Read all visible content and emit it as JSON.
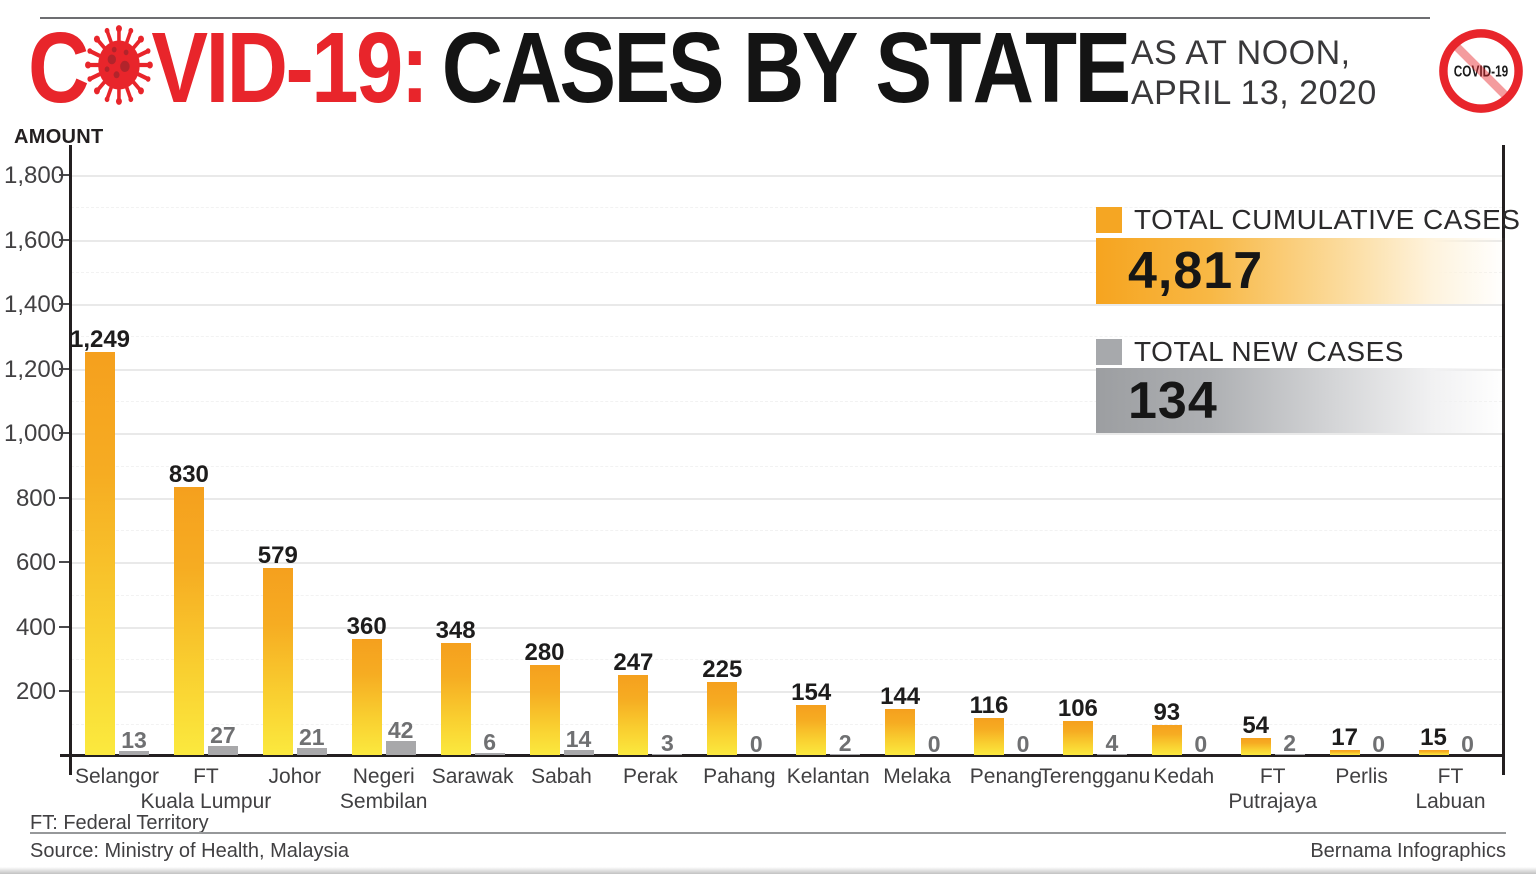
{
  "header": {
    "title_c": "C",
    "title_red_rest": "VID-19:",
    "title_black": "CASES BY STATE",
    "date_line1": "AS AT NOON,",
    "date_line2": "APRIL 13, 2020",
    "badge_text": "COVID-19"
  },
  "colors": {
    "brand_red": "#e8252b",
    "bar_orange_top": "#f5a01e",
    "bar_yellow_bottom": "#fbe93e",
    "bar_gray": "#a8a8aa",
    "legend_orange": "#f5a623",
    "legend_gray": "#a7a9ac"
  },
  "legend": {
    "cumulative_label": "TOTAL CUMULATIVE CASES",
    "cumulative_total": "4,817",
    "new_label": "TOTAL NEW CASES",
    "new_total": "134"
  },
  "chart_data": {
    "type": "bar",
    "title": "COVID-19: CASES BY STATE",
    "subtitle": "AS AT NOON, APRIL 13, 2020",
    "xlabel": "",
    "ylabel": "AMOUNT",
    "ylim": [
      0,
      1800
    ],
    "ytick_step": 200,
    "ytick_labels": [
      "200",
      "400",
      "600",
      "800",
      "1,000",
      "1,200",
      "1,400",
      "1,600",
      "1,800"
    ],
    "grid": true,
    "legend_position": "top-right",
    "categories": [
      "Selangor",
      "FT Kuala Lumpur",
      "Johor",
      "Negeri Sembilan",
      "Sarawak",
      "Sabah",
      "Perak",
      "Pahang",
      "Kelantan",
      "Melaka",
      "Penang",
      "Terengganu",
      "Kedah",
      "FT Putrajaya",
      "Perlis",
      "FT Labuan"
    ],
    "category_lines": [
      [
        "Selangor"
      ],
      [
        "FT",
        "Kuala Lumpur"
      ],
      [
        "Johor"
      ],
      [
        "Negeri",
        "Sembilan"
      ],
      [
        "Sarawak"
      ],
      [
        "Sabah"
      ],
      [
        "Perak"
      ],
      [
        "Pahang"
      ],
      [
        "Kelantan"
      ],
      [
        "Melaka"
      ],
      [
        "Penang"
      ],
      [
        "Terengganu"
      ],
      [
        "Kedah"
      ],
      [
        "FT",
        "Putrajaya"
      ],
      [
        "Perlis"
      ],
      [
        "FT",
        "Labuan"
      ]
    ],
    "series": [
      {
        "name": "TOTAL CUMULATIVE CASES",
        "total": "4,817",
        "values": [
          1249,
          830,
          579,
          360,
          348,
          280,
          247,
          225,
          154,
          144,
          116,
          106,
          93,
          54,
          17,
          15
        ],
        "labels": [
          "1,249",
          "830",
          "579",
          "360",
          "348",
          "280",
          "247",
          "225",
          "154",
          "144",
          "116",
          "106",
          "93",
          "54",
          "17",
          "15"
        ]
      },
      {
        "name": "TOTAL NEW CASES",
        "total": "134",
        "values": [
          13,
          27,
          21,
          42,
          6,
          14,
          3,
          0,
          2,
          0,
          0,
          4,
          0,
          2,
          0,
          0
        ],
        "labels": [
          "13",
          "27",
          "21",
          "42",
          "6",
          "14",
          "3",
          "0",
          "2",
          "0",
          "0",
          "4",
          "0",
          "2",
          "0",
          "0"
        ]
      }
    ]
  },
  "footer": {
    "note": "FT: Federal Territory",
    "source": "Source: Ministry of Health, Malaysia",
    "credit": "Bernama Infographics"
  }
}
